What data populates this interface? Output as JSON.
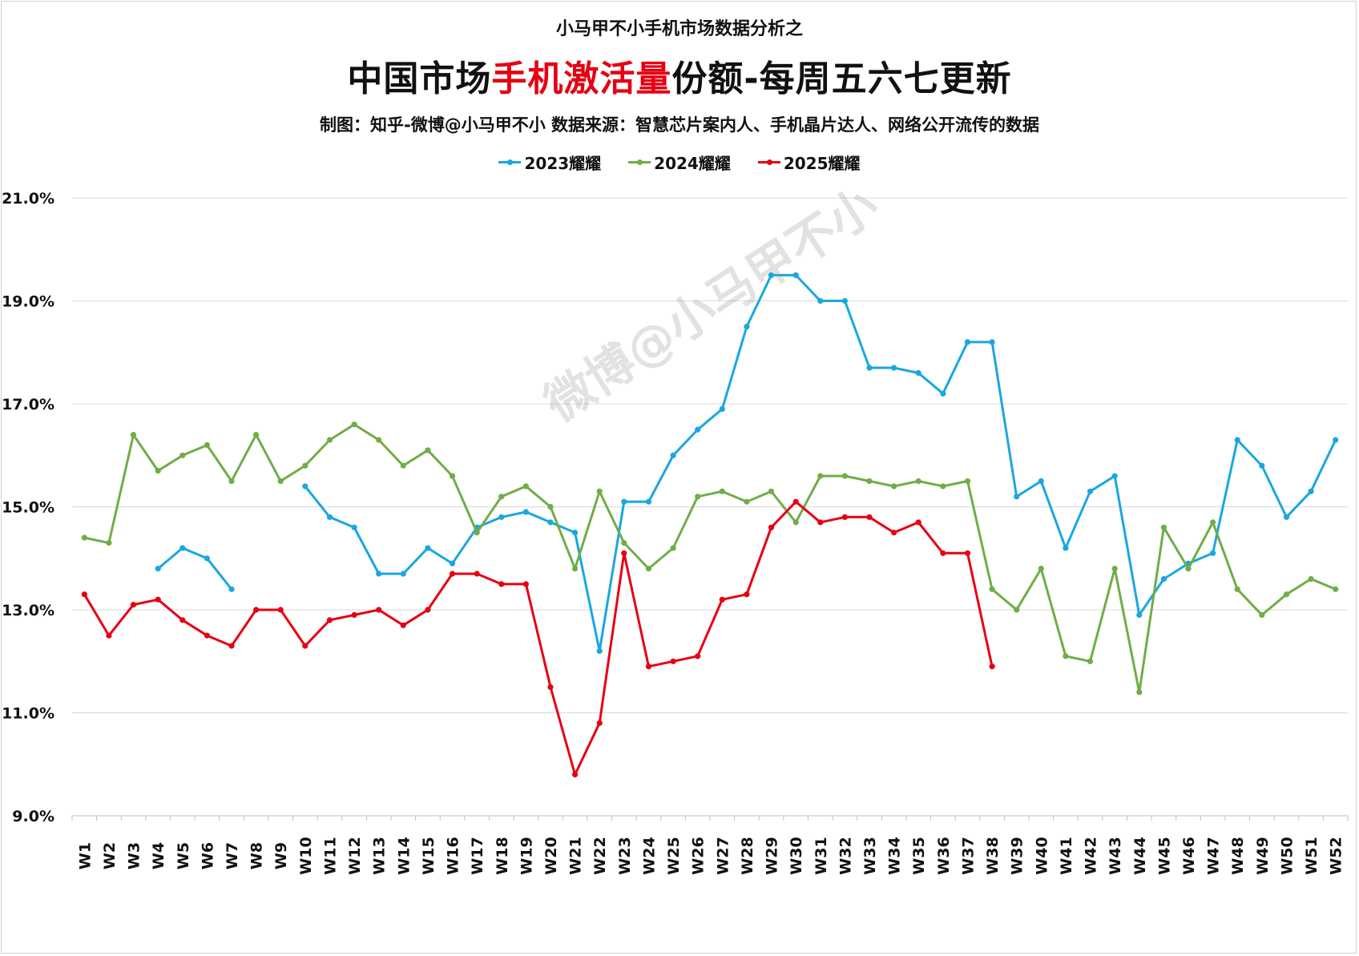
{
  "header": {
    "supertitle": "小马甲不小手机市场数据分析之",
    "title_prefix": "中国市场",
    "title_highlight": "手机激活量",
    "title_suffix": "份额-每周五六七更新",
    "credit": "制图：知乎-微博@小马甲不小   数据来源：智慧芯片案内人、手机晶片达人、网络公开流传的数据"
  },
  "watermark": "微博@小马甲不小",
  "chart_data": {
    "type": "line",
    "title": "中国市场手机激活量份额-每周五六七更新",
    "xlabel": "",
    "ylabel": "",
    "ylim": [
      9.0,
      21.0
    ],
    "yticks": [
      9.0,
      11.0,
      13.0,
      15.0,
      17.0,
      19.0,
      21.0
    ],
    "ytick_labels": [
      "9.0%",
      "11.0%",
      "13.0%",
      "15.0%",
      "17.0%",
      "19.0%",
      "21.0%"
    ],
    "grid": true,
    "legend_position": "top-center",
    "categories": [
      "W1",
      "W2",
      "W3",
      "W4",
      "W5",
      "W6",
      "W7",
      "W8",
      "W9",
      "W10",
      "W11",
      "W12",
      "W13",
      "W14",
      "W15",
      "W16",
      "W17",
      "W18",
      "W19",
      "W20",
      "W21",
      "W22",
      "W23",
      "W24",
      "W25",
      "W26",
      "W27",
      "W28",
      "W29",
      "W30",
      "W31",
      "W32",
      "W33",
      "W34",
      "W35",
      "W36",
      "W37",
      "W38",
      "W39",
      "W40",
      "W41",
      "W42",
      "W43",
      "W44",
      "W45",
      "W46",
      "W47",
      "W48",
      "W49",
      "W50",
      "W51",
      "W52"
    ],
    "series": [
      {
        "name": "2023耀耀",
        "color": "#1aa7e0",
        "values": [
          null,
          null,
          null,
          13.8,
          14.2,
          14.0,
          13.4,
          null,
          null,
          15.4,
          14.8,
          14.6,
          13.7,
          13.7,
          14.2,
          13.9,
          14.6,
          14.8,
          14.9,
          14.7,
          14.5,
          12.2,
          15.1,
          15.1,
          16.0,
          16.5,
          16.9,
          18.5,
          19.5,
          19.5,
          19.0,
          19.0,
          17.7,
          17.7,
          17.6,
          17.2,
          18.2,
          18.2,
          15.2,
          15.5,
          14.2,
          15.3,
          15.6,
          12.9,
          13.6,
          13.9,
          14.1,
          16.3,
          15.8,
          14.8,
          15.3,
          16.3
        ]
      },
      {
        "name": "2024耀耀",
        "color": "#70ad47",
        "values": [
          14.4,
          14.3,
          16.4,
          15.7,
          16.0,
          16.2,
          15.5,
          16.4,
          15.5,
          15.8,
          16.3,
          16.6,
          16.3,
          15.8,
          16.1,
          15.6,
          14.5,
          15.2,
          15.4,
          15.0,
          13.8,
          15.3,
          14.3,
          13.8,
          14.2,
          15.2,
          15.3,
          15.1,
          15.3,
          14.7,
          15.6,
          15.6,
          15.5,
          15.4,
          15.5,
          15.4,
          15.5,
          13.4,
          13.0,
          13.8,
          12.1,
          12.0,
          13.8,
          11.4,
          14.6,
          13.8,
          14.7,
          13.4,
          12.9,
          13.3,
          13.6,
          13.4
        ]
      },
      {
        "name": "2025耀耀",
        "color": "#e60012",
        "values": [
          13.3,
          12.5,
          13.1,
          13.2,
          12.8,
          12.5,
          12.3,
          13.0,
          13.0,
          12.3,
          12.8,
          12.9,
          13.0,
          12.7,
          13.0,
          13.7,
          13.7,
          13.5,
          13.5,
          11.5,
          9.8,
          10.8,
          14.1,
          11.9,
          12.0,
          12.1,
          13.2,
          13.3,
          14.6,
          15.1,
          14.7,
          14.8,
          14.8,
          14.5,
          14.7,
          14.1,
          14.1,
          11.9,
          null,
          null,
          null,
          null,
          null,
          null,
          null,
          null,
          null,
          null,
          null,
          null,
          null,
          null
        ]
      }
    ]
  }
}
